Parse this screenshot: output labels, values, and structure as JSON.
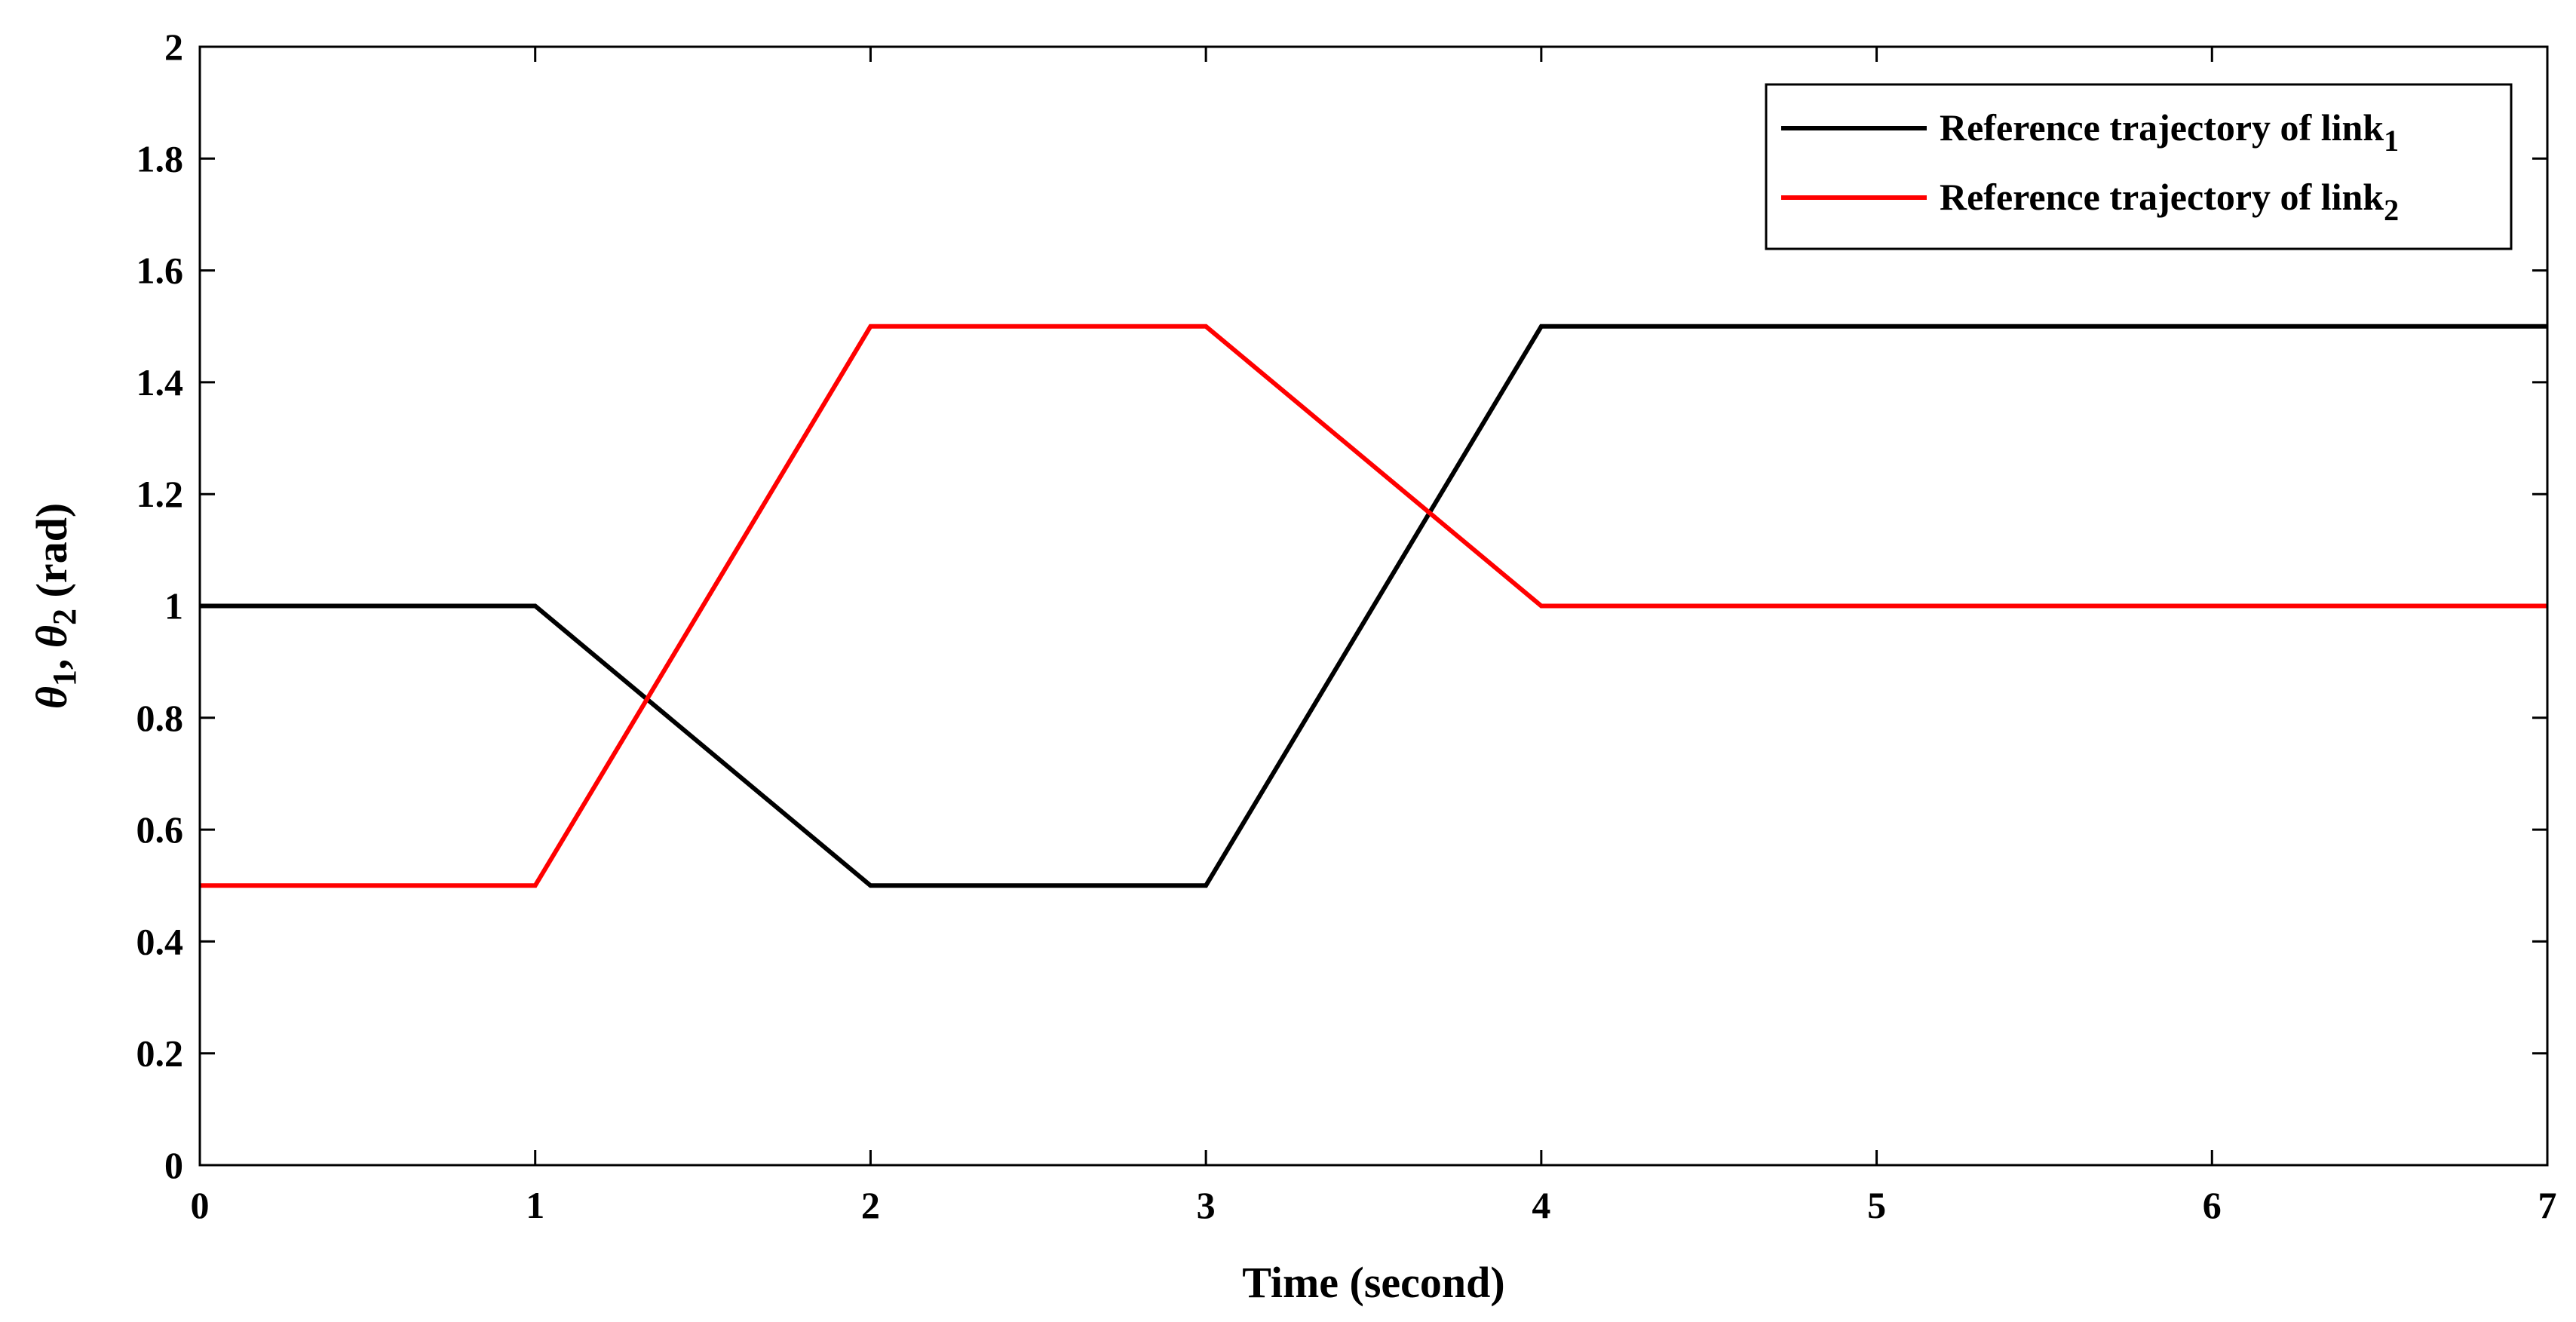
{
  "chart_data": {
    "type": "line",
    "xlabel": "Time (second)",
    "ylabel": {
      "parts": [
        {
          "text": "θ",
          "style": "italic"
        },
        {
          "text": "1",
          "style": "sub"
        },
        {
          "text": ", ",
          "style": "normal"
        },
        {
          "text": "θ",
          "style": "italic"
        },
        {
          "text": "2",
          "style": "sub"
        },
        {
          "text": " (rad)",
          "style": "normal"
        }
      ]
    },
    "xlim": [
      0,
      7
    ],
    "ylim": [
      0,
      2
    ],
    "xticks": [
      0,
      1,
      2,
      3,
      4,
      5,
      6,
      7
    ],
    "yticks": [
      0,
      0.2,
      0.4,
      0.6,
      0.8,
      1,
      1.2,
      1.4,
      1.6,
      1.8,
      2
    ],
    "xtick_labels": [
      "0",
      "1",
      "2",
      "3",
      "4",
      "5",
      "6",
      "7"
    ],
    "ytick_labels": [
      "0",
      "0.2",
      "0.4",
      "0.6",
      "0.8",
      "1",
      "1.2",
      "1.4",
      "1.6",
      "1.8",
      "2"
    ],
    "grid": false,
    "legend_position": "top-right",
    "series": [
      {
        "name": "Reference trajectory of link",
        "name_subscript": "1",
        "color": "#000000",
        "x": [
          0,
          1,
          2,
          3,
          4,
          7
        ],
        "y": [
          1,
          1,
          0.5,
          0.5,
          1.5,
          1.5
        ]
      },
      {
        "name": "Reference trajectory of link",
        "name_subscript": "2",
        "color": "#ff0000",
        "x": [
          0,
          1,
          2,
          3,
          4,
          7
        ],
        "y": [
          0.5,
          0.5,
          1.5,
          1.5,
          1,
          1
        ]
      }
    ]
  }
}
